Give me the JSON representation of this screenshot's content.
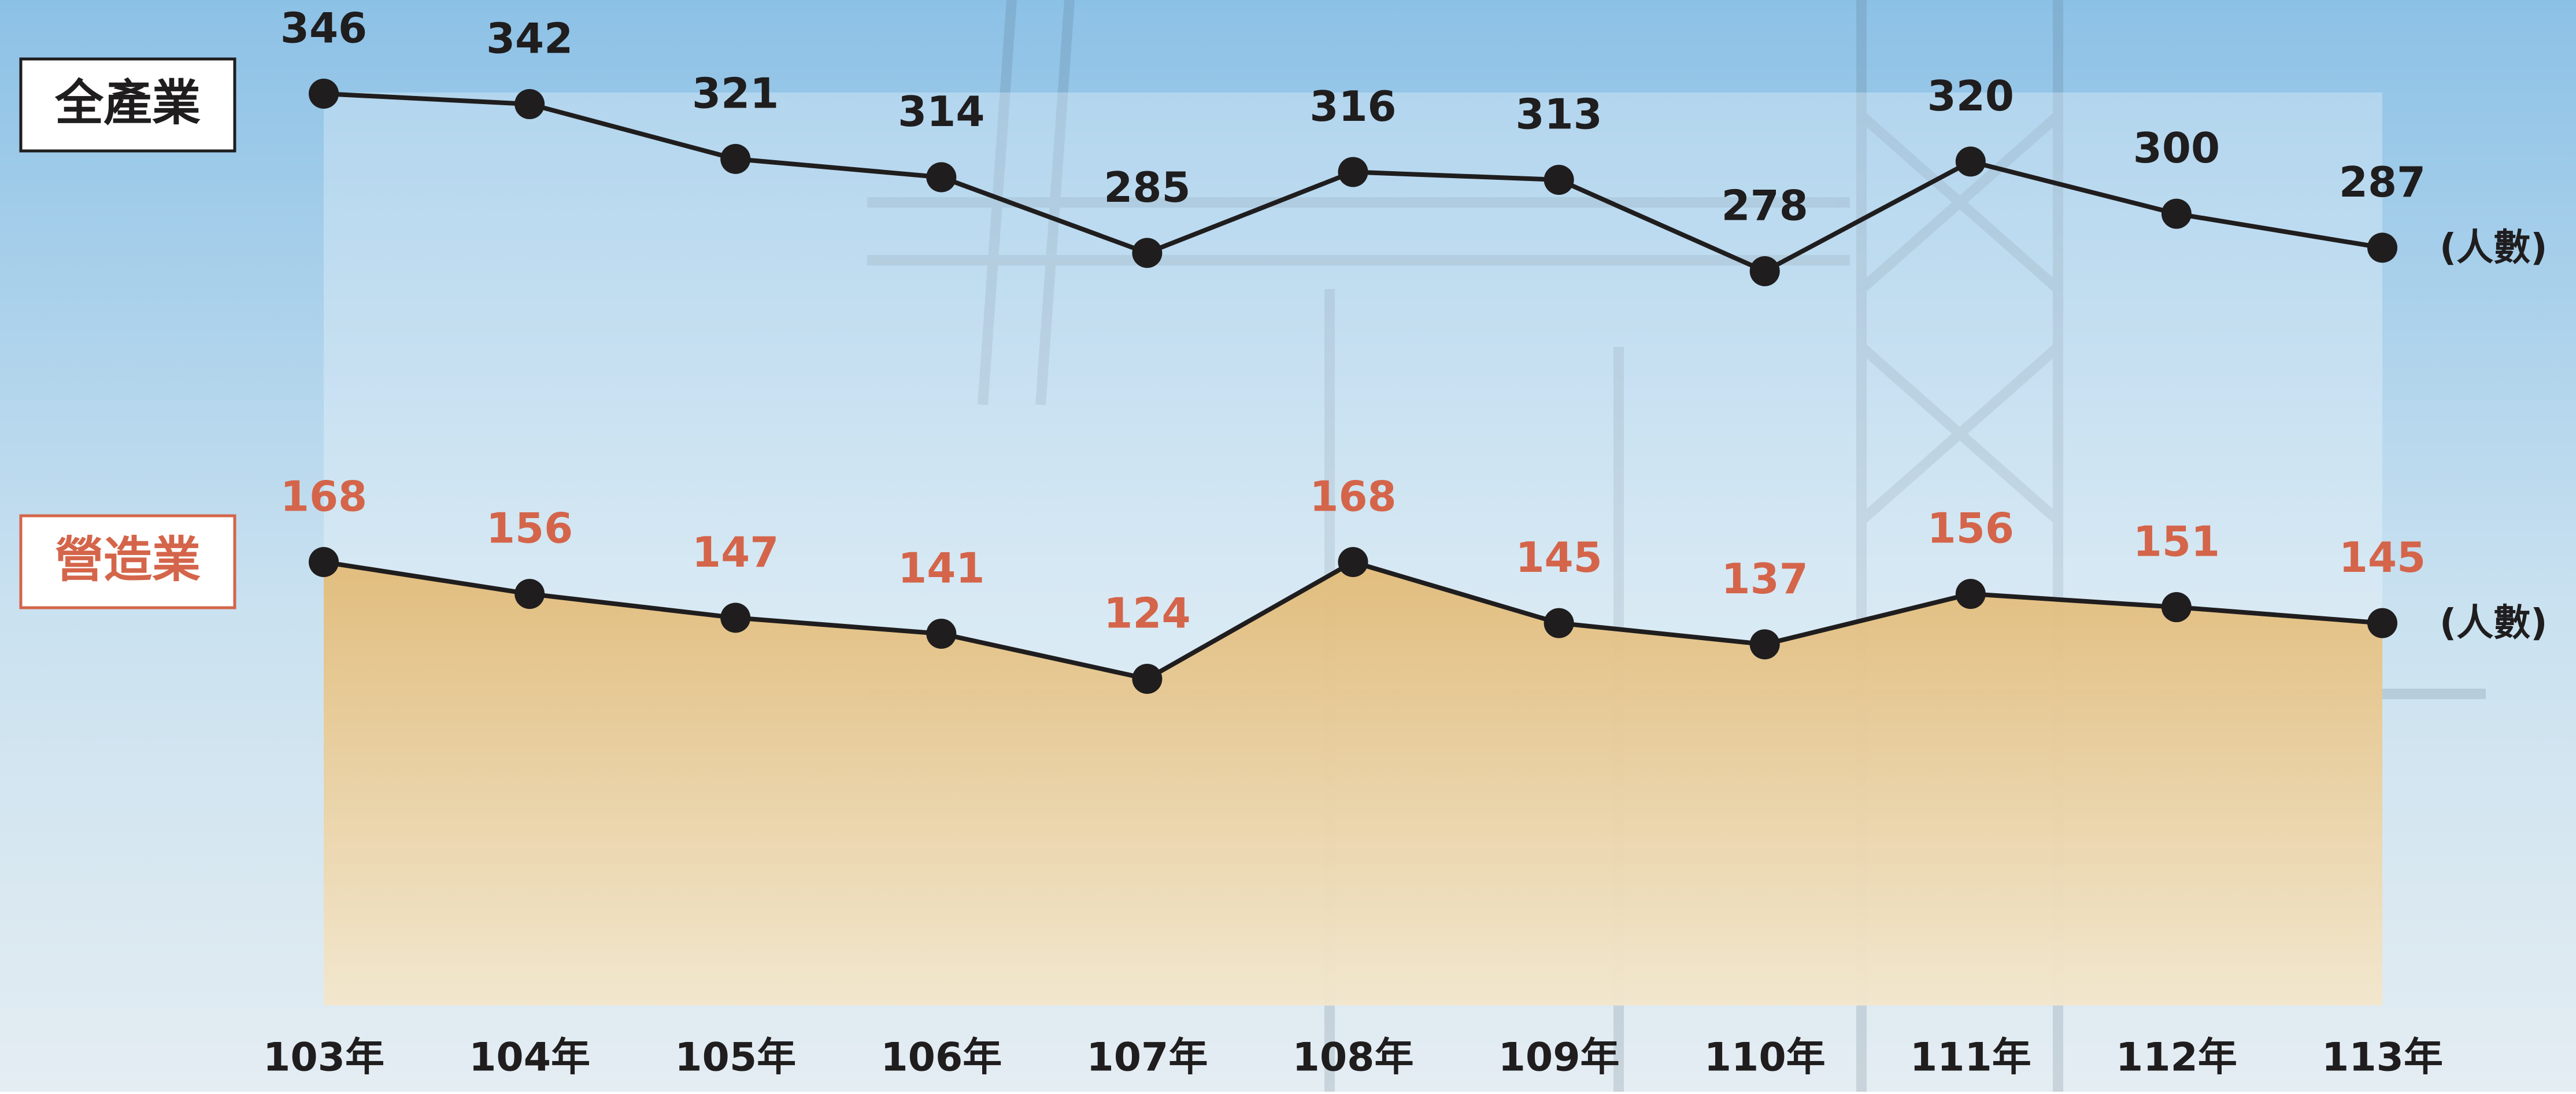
{
  "chart_data": {
    "type": "line",
    "categories": [
      "103年",
      "104年",
      "105年",
      "106年",
      "107年",
      "108年",
      "109年",
      "110年",
      "111年",
      "112年",
      "113年"
    ],
    "series": [
      {
        "name": "全產業",
        "color": "#1f1d1e",
        "label_color": "#1f1d1e",
        "unit": "(人數)",
        "area": false,
        "values": [
          346,
          342,
          321,
          314,
          285,
          316,
          313,
          278,
          320,
          300,
          287
        ]
      },
      {
        "name": "營造業",
        "color": "#1f1d1e",
        "label_color": "#d4654a",
        "unit": "(人數)",
        "area": true,
        "values": [
          168,
          156,
          147,
          141,
          124,
          168,
          145,
          137,
          156,
          151,
          145
        ]
      }
    ]
  }
}
